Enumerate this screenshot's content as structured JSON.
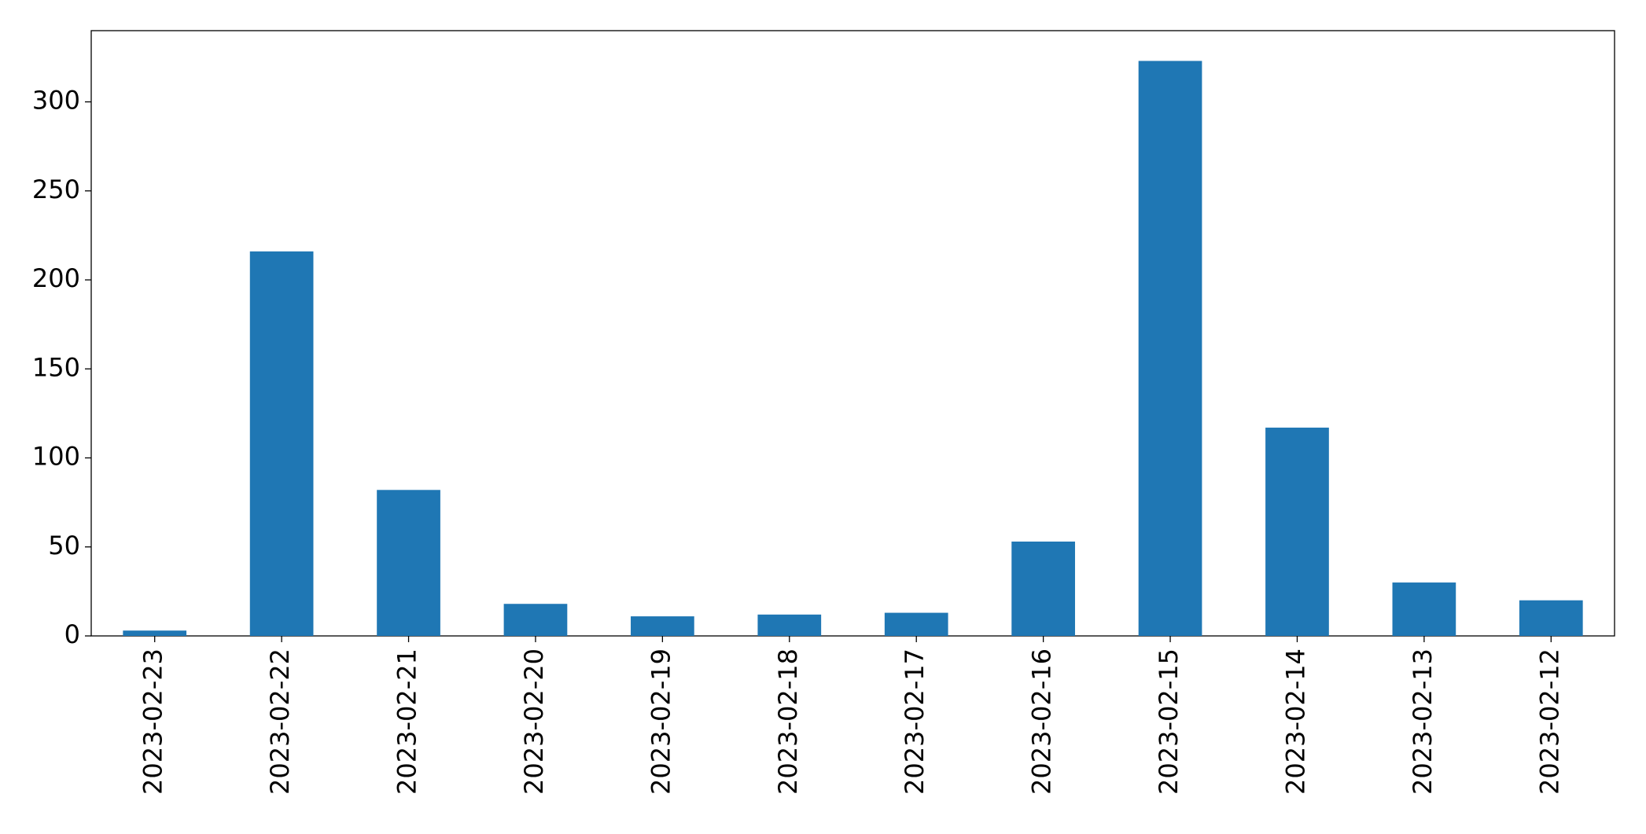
{
  "chart_data": {
    "type": "bar",
    "categories": [
      "2023-02-23",
      "2023-02-22",
      "2023-02-21",
      "2023-02-20",
      "2023-02-19",
      "2023-02-18",
      "2023-02-17",
      "2023-02-16",
      "2023-02-15",
      "2023-02-14",
      "2023-02-13",
      "2023-02-12"
    ],
    "values": [
      3,
      216,
      82,
      18,
      11,
      12,
      13,
      53,
      323,
      117,
      30,
      20
    ],
    "color": "#1f77b4",
    "ylim": [
      0,
      340
    ],
    "yticks": [
      0,
      50,
      100,
      150,
      200,
      250,
      300
    ],
    "grid": false
  }
}
